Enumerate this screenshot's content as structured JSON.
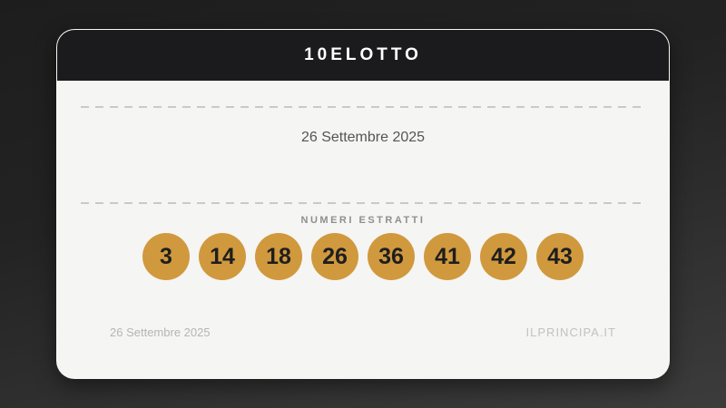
{
  "header": {
    "title": "10ELOTTO"
  },
  "draw": {
    "date": "26 Settembre 2025",
    "numbers_label": "NUMERI ESTRATTI",
    "numbers": [
      "3",
      "14",
      "18",
      "26",
      "36",
      "41",
      "42",
      "43"
    ]
  },
  "footer": {
    "date": "26 Settembre 2025",
    "site": "ILPRINCIPA.IT"
  },
  "colors": {
    "ball": "#d0993e",
    "header_bg": "#1b1b1d",
    "card_bg": "#f5f5f3",
    "background_top": "#1d1d1d",
    "background_bottom": "#3c3c3c"
  }
}
